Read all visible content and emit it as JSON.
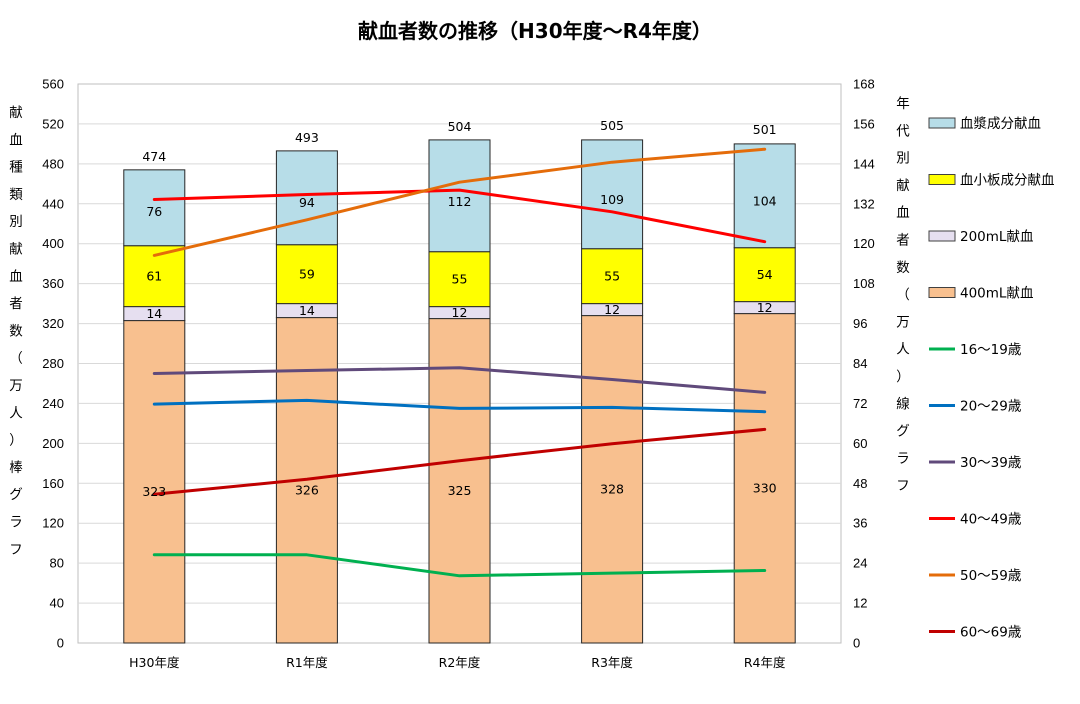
{
  "chart_data": {
    "type": "bar",
    "title": "献血者数の推移（H30年度～R4年度）",
    "categories": [
      "H30年度",
      "R1年度",
      "R2年度",
      "R3年度",
      "R4年度"
    ],
    "y_left": {
      "label": "献血種類別献血者数（万人）棒グラフ",
      "ylim": [
        0,
        560
      ],
      "ticks": [
        "0",
        "40",
        "80",
        "120",
        "160",
        "200",
        "240",
        "280",
        "320",
        "360",
        "400",
        "440",
        "480",
        "520",
        "560"
      ]
    },
    "y_right": {
      "label": "年代別献血者数（万人）線グラフ",
      "ylim": [
        0,
        168
      ],
      "ticks": [
        "0",
        "12",
        "24",
        "36",
        "48",
        "60",
        "72",
        "84",
        "96",
        "108",
        "120",
        "132",
        "144",
        "156",
        "168"
      ]
    },
    "grid": true,
    "legend_position": "right",
    "bar_series": [
      {
        "name": "400mL献血",
        "color": "#f8c08f",
        "values": [
          323,
          326,
          325,
          328,
          330
        ],
        "labels": [
          "323",
          "326",
          "325",
          "328",
          "330"
        ]
      },
      {
        "name": "200mL献血",
        "color": "#e6dff0",
        "values": [
          14,
          14,
          12,
          12,
          12
        ],
        "labels": [
          "14",
          "14",
          "12",
          "12",
          "12"
        ]
      },
      {
        "name": "血小板成分献血",
        "color": "#ffff00",
        "values": [
          61,
          59,
          55,
          55,
          54
        ],
        "labels": [
          "61",
          "59",
          "55",
          "55",
          "54"
        ]
      },
      {
        "name": "血漿成分献血",
        "color": "#b7dde8",
        "values": [
          76,
          94,
          112,
          109,
          104
        ],
        "labels": [
          "76",
          "94",
          "112",
          "109",
          "104"
        ]
      }
    ],
    "totals": {
      "values": [
        474,
        493,
        504,
        505,
        501
      ],
      "labels": [
        "474",
        "493",
        "504",
        "505",
        "501"
      ]
    },
    "line_series": [
      {
        "name": "16～19歳",
        "color": "#00b050",
        "values": [
          26.5,
          26.5,
          20.2,
          21.0,
          21.8
        ]
      },
      {
        "name": "20～29歳",
        "color": "#0070c0",
        "values": [
          71.8,
          72.9,
          70.5,
          70.8,
          69.5
        ]
      },
      {
        "name": "30～39歳",
        "color": "#604a7b",
        "values": [
          81.0,
          81.9,
          82.7,
          79.2,
          75.3
        ]
      },
      {
        "name": "40～49歳",
        "color": "#ff0000",
        "values": [
          133.3,
          134.8,
          136.1,
          129.6,
          120.6
        ]
      },
      {
        "name": "50～59歳",
        "color": "#e46c0a",
        "values": [
          116.5,
          127.2,
          138.5,
          144.5,
          148.4
        ]
      },
      {
        "name": "60～69歳",
        "color": "#c00000",
        "values": [
          44.7,
          49.2,
          54.8,
          59.9,
          64.2
        ]
      }
    ],
    "legend_order": [
      "血漿成分献血",
      "血小板成分献血",
      "200mL献血",
      "400mL献血",
      "16～19歳",
      "20～29歳",
      "30～39歳",
      "40～49歳",
      "50～59歳",
      "60～69歳"
    ]
  }
}
